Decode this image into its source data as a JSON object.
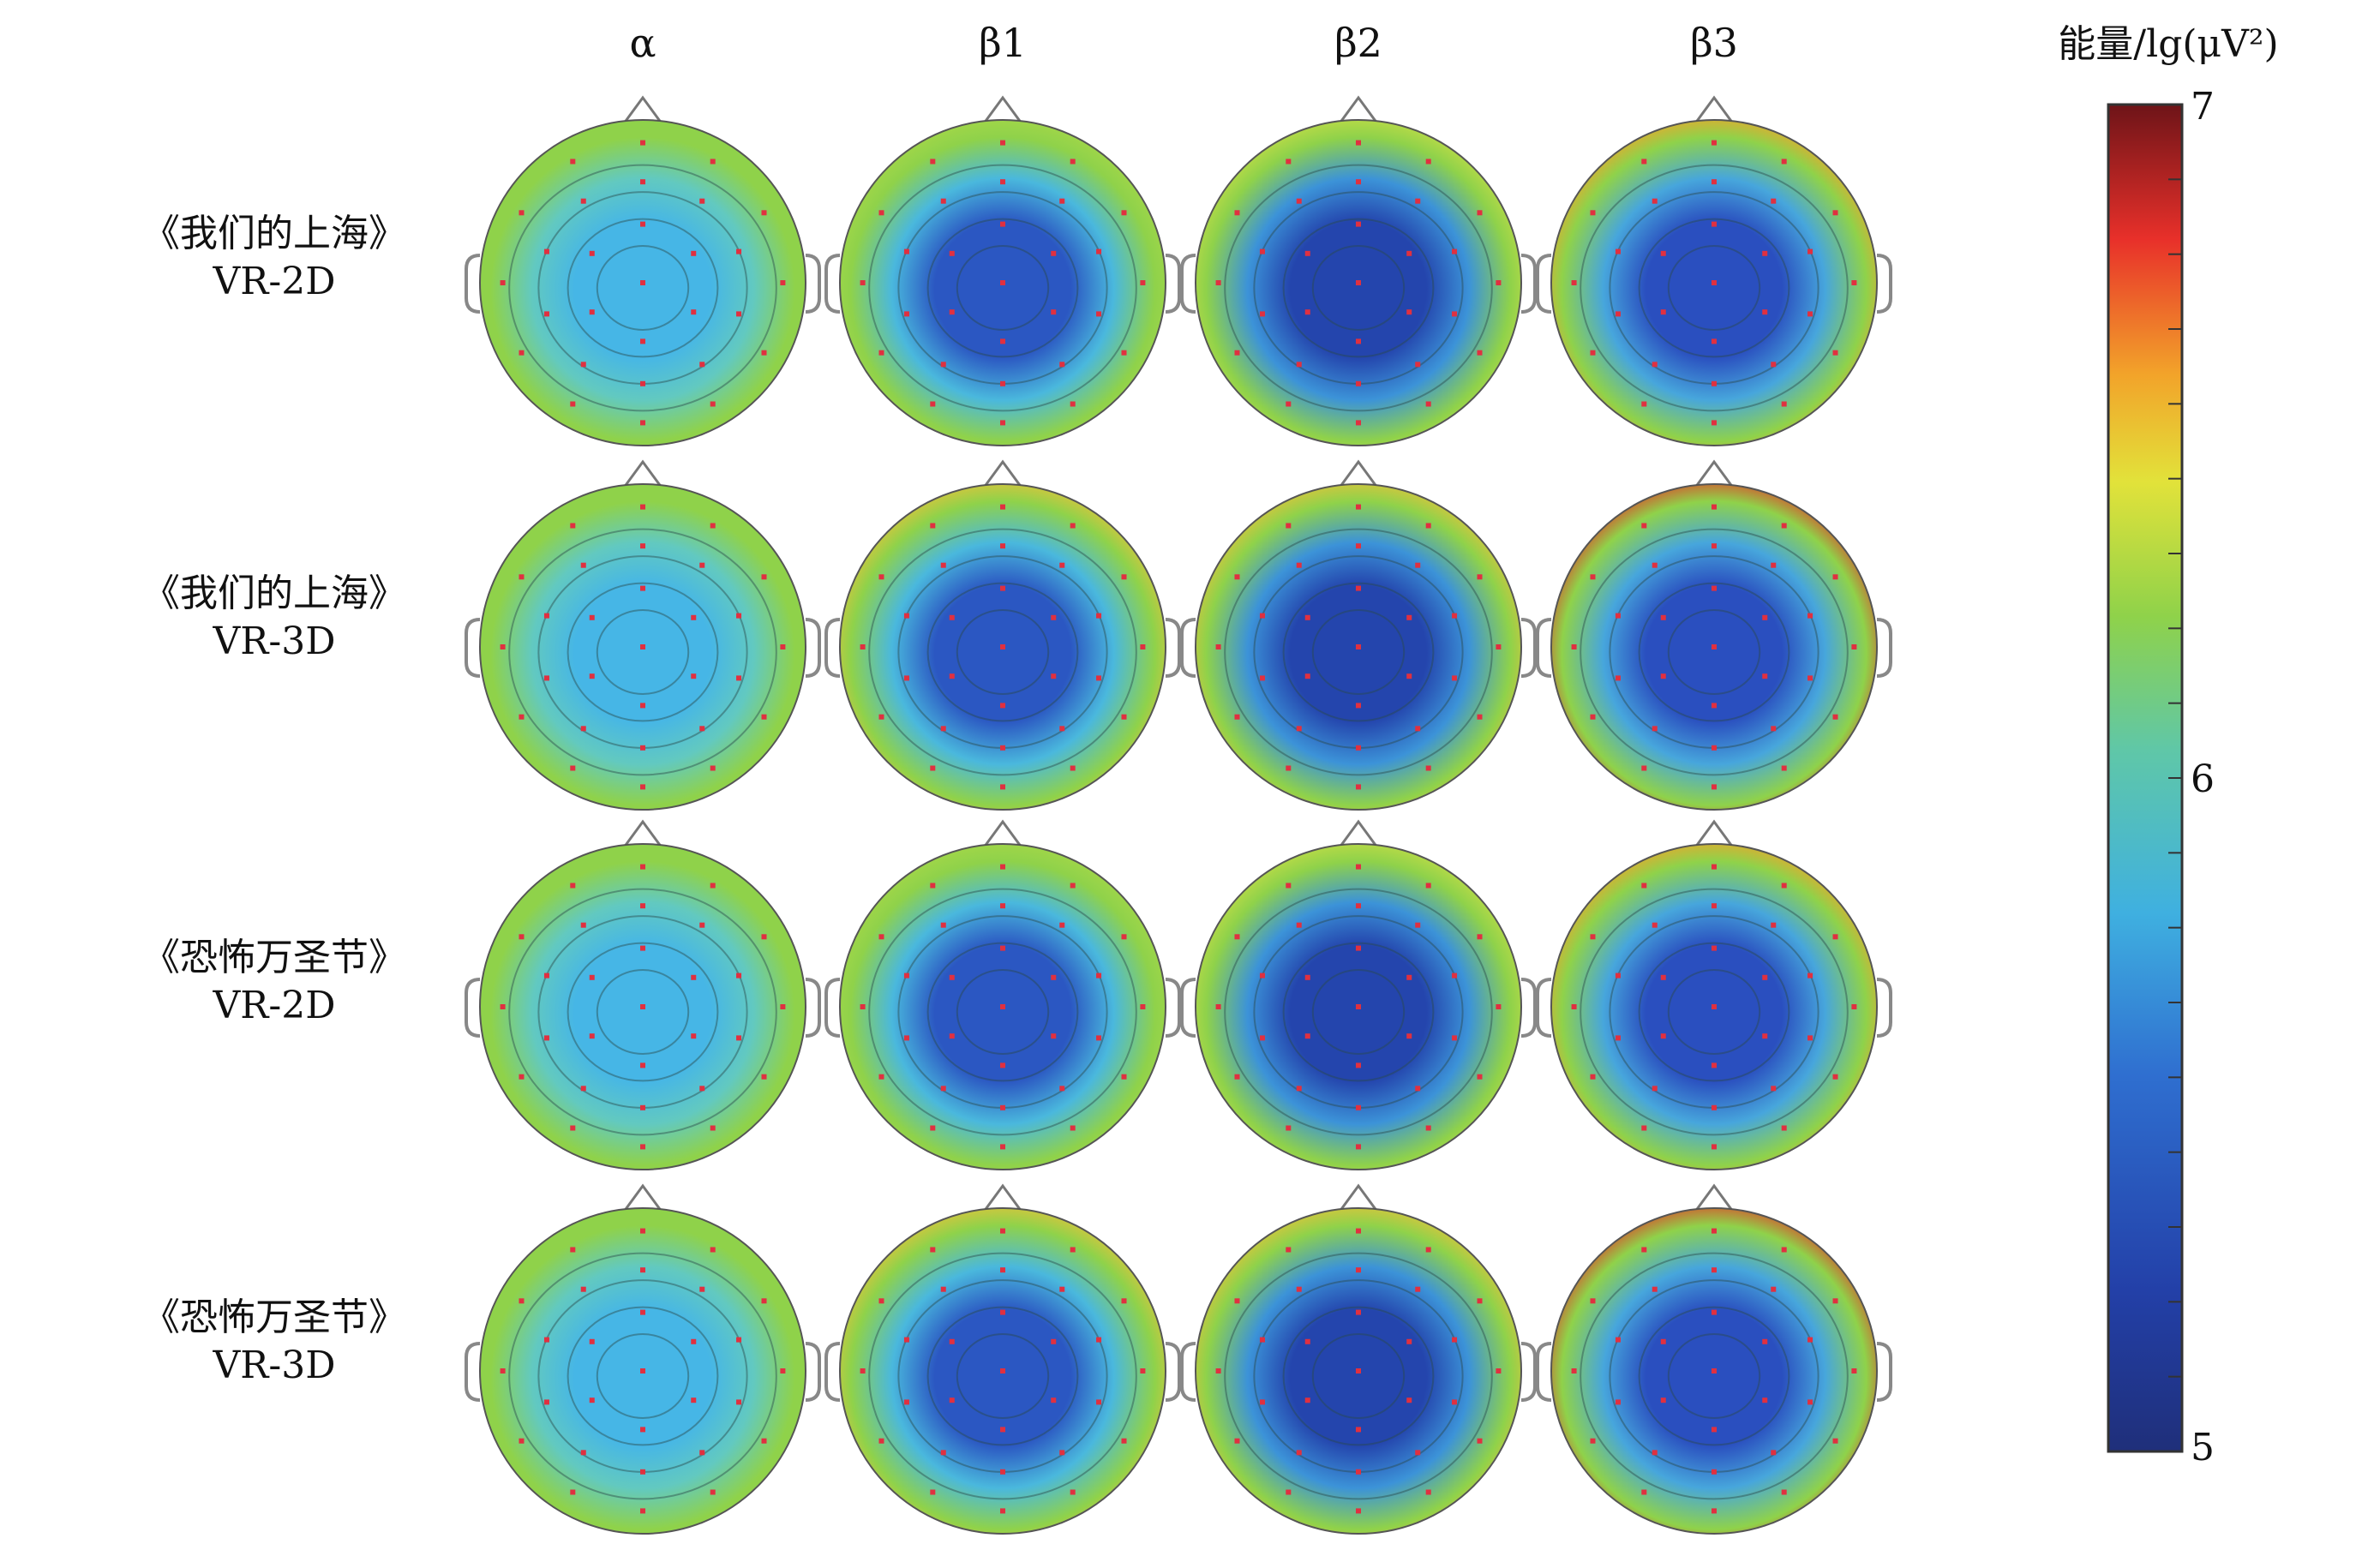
{
  "columns": [
    "α",
    "β1",
    "β2",
    "β3"
  ],
  "rows": [
    {
      "title": "《我们的上海》",
      "mode": "VR-2D"
    },
    {
      "title": "《我们的上海》",
      "mode": "VR-3D"
    },
    {
      "title": "《恐怖万圣节》",
      "mode": "VR-2D"
    },
    {
      "title": "《恐怖万圣节》",
      "mode": "VR-3D"
    }
  ],
  "colorbar": {
    "title": "能量/lg(μV²)",
    "ticks": [
      "7",
      "6",
      "5"
    ],
    "range": [
      5,
      7
    ]
  }
}
